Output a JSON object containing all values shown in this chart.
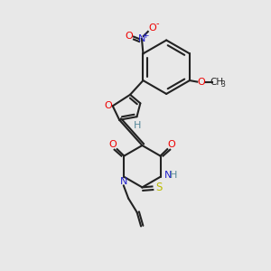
{
  "bg_color": "#e8e8e8",
  "bond_color": "#222222",
  "atom_colors": {
    "O": "#ee0000",
    "N": "#2222cc",
    "S": "#bbbb00",
    "H": "#558899",
    "C": "#222222"
  },
  "lw": 1.5
}
